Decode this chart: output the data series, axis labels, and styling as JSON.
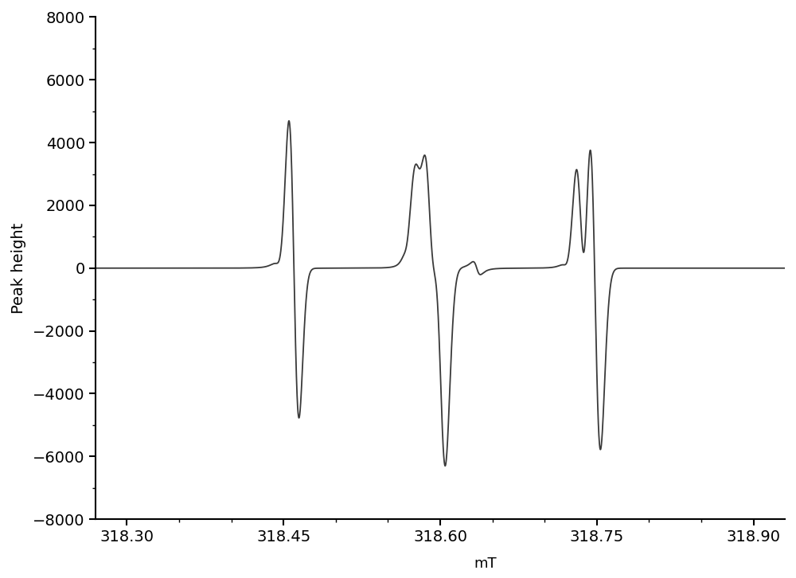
{
  "title": "",
  "xlabel": "mT",
  "ylabel": "Peak height",
  "xlim": [
    318.27,
    318.93
  ],
  "ylim": [
    -8000,
    8000
  ],
  "xticks": [
    318.3,
    318.45,
    318.6,
    318.75,
    318.9
  ],
  "yticks": [
    -8000,
    -6000,
    -4000,
    -2000,
    0,
    2000,
    4000,
    6000,
    8000
  ],
  "line_color": "#3a3a3a",
  "line_width": 1.3,
  "bg_color": "#ffffff",
  "figsize": [
    10.0,
    7.26
  ],
  "dpi": 100,
  "xlabel_xcoord": 0.565,
  "xlabel_ycoord": -0.075
}
